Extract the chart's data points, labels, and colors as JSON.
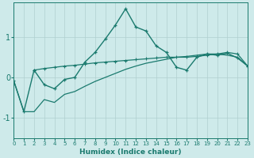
{
  "xlabel": "Humidex (Indice chaleur)",
  "bg_color": "#ceeaea",
  "line_color": "#1a7a6e",
  "grid_color": "#b0d0d0",
  "xlim": [
    0,
    23
  ],
  "ylim": [
    -1.5,
    1.85
  ],
  "x_ticks": [
    0,
    1,
    2,
    3,
    4,
    5,
    6,
    7,
    8,
    9,
    10,
    11,
    12,
    13,
    14,
    15,
    16,
    17,
    18,
    19,
    20,
    21,
    22,
    23
  ],
  "y_ticks": [
    -1,
    0,
    1
  ],
  "zigzag_x": [
    0,
    1,
    2,
    3,
    4,
    5,
    6,
    7,
    8,
    9,
    10,
    11,
    12,
    13,
    14,
    15,
    16,
    17,
    18,
    19,
    20,
    21,
    22,
    23
  ],
  "zigzag_y": [
    -0.08,
    -0.85,
    0.18,
    -0.18,
    -0.28,
    -0.05,
    0.0,
    0.38,
    0.62,
    0.95,
    1.3,
    1.7,
    1.25,
    1.15,
    0.78,
    0.62,
    0.25,
    0.18,
    0.5,
    0.58,
    0.55,
    0.6,
    0.48,
    0.28
  ],
  "upper_x": [
    2,
    3,
    4,
    5,
    6,
    7,
    8,
    9,
    10,
    11,
    12,
    13,
    14,
    15,
    16,
    17,
    18,
    19,
    20,
    21,
    22,
    23
  ],
  "upper_y": [
    0.18,
    0.22,
    0.25,
    0.28,
    0.3,
    0.33,
    0.36,
    0.38,
    0.4,
    0.42,
    0.44,
    0.46,
    0.48,
    0.5,
    0.5,
    0.5,
    0.52,
    0.55,
    0.58,
    0.62,
    0.58,
    0.28
  ],
  "lower_x": [
    0,
    1,
    2,
    3,
    4,
    5,
    6,
    7,
    8,
    9,
    10,
    11,
    12,
    13,
    14,
    15,
    16,
    17,
    18,
    19,
    20,
    21,
    22,
    23
  ],
  "lower_y": [
    -0.08,
    -0.85,
    -0.85,
    -0.55,
    -0.62,
    -0.42,
    -0.35,
    -0.22,
    -0.1,
    0.0,
    0.1,
    0.2,
    0.28,
    0.35,
    0.4,
    0.45,
    0.5,
    0.52,
    0.55,
    0.58,
    0.58,
    0.55,
    0.5,
    0.28
  ]
}
